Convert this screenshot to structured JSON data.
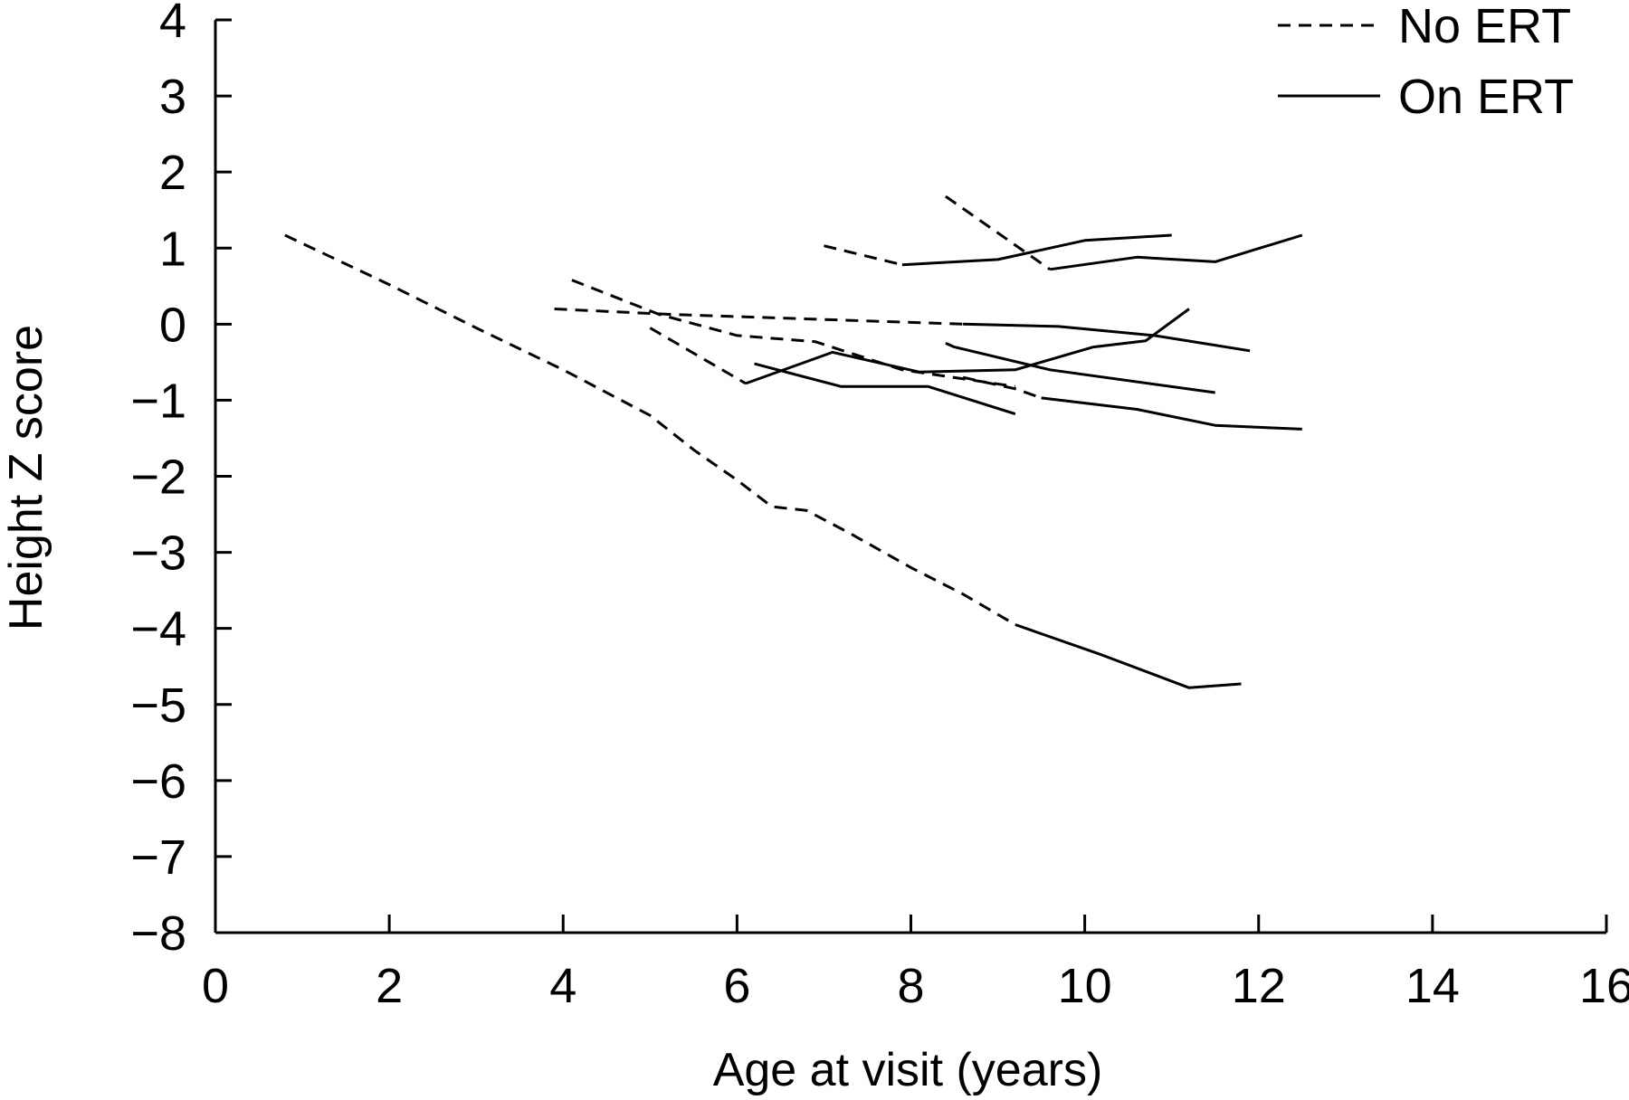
{
  "chart_data": {
    "type": "line",
    "title": "",
    "xlabel": "Age at visit (years)",
    "ylabel": "Height Z score",
    "xlim": [
      0,
      16
    ],
    "ylim": [
      -8,
      4
    ],
    "xticks": [
      0,
      2,
      4,
      6,
      8,
      10,
      12,
      14,
      16
    ],
    "yticks": [
      4,
      3,
      2,
      1,
      0,
      -1,
      -2,
      -3,
      -4,
      -5,
      -6,
      -7,
      -8
    ],
    "ytick_labels": [
      "4",
      "3",
      "2",
      "1",
      "0",
      "−1",
      "−2",
      "−3",
      "−4",
      "−5",
      "−6",
      "−7",
      "−8"
    ],
    "grid": false,
    "legend": {
      "position": "top-right",
      "entries": [
        {
          "label": "No ERT",
          "style": "dashed"
        },
        {
          "label": "On ERT",
          "style": "solid"
        }
      ]
    },
    "colors": {
      "line": "#000000",
      "background": "#ffffff"
    },
    "series": [
      {
        "style": "dashed",
        "points": [
          [
            0.8,
            1.17
          ],
          [
            2.0,
            0.52
          ],
          [
            3.0,
            -0.05
          ],
          [
            4.0,
            -0.6
          ],
          [
            5.0,
            -1.2
          ],
          [
            5.5,
            -1.65
          ],
          [
            6.0,
            -2.05
          ],
          [
            6.4,
            -2.4
          ],
          [
            6.8,
            -2.45
          ],
          [
            7.3,
            -2.75
          ],
          [
            8.0,
            -3.2
          ],
          [
            8.6,
            -3.55
          ],
          [
            9.2,
            -3.95
          ]
        ]
      },
      {
        "style": "solid",
        "points": [
          [
            9.2,
            -3.95
          ],
          [
            10.2,
            -4.35
          ],
          [
            11.2,
            -4.78
          ],
          [
            11.8,
            -4.73
          ]
        ]
      },
      {
        "style": "dashed",
        "points": [
          [
            3.9,
            0.2
          ],
          [
            5.2,
            0.13
          ],
          [
            8.6,
            0.0
          ]
        ]
      },
      {
        "style": "solid",
        "points": [
          [
            8.6,
            0.0
          ],
          [
            9.7,
            -0.03
          ],
          [
            10.8,
            -0.15
          ],
          [
            11.9,
            -0.35
          ]
        ]
      },
      {
        "style": "dashed",
        "points": [
          [
            4.1,
            0.58
          ],
          [
            5.1,
            0.13
          ],
          [
            6.0,
            -0.15
          ],
          [
            6.9,
            -0.23
          ],
          [
            7.9,
            -0.6
          ],
          [
            9.2,
            -0.82
          ]
        ]
      },
      {
        "style": "dashed",
        "points": [
          [
            5.0,
            -0.05
          ],
          [
            6.1,
            -0.78
          ]
        ]
      },
      {
        "style": "solid",
        "points": [
          [
            6.1,
            -0.78
          ],
          [
            7.1,
            -0.37
          ],
          [
            8.1,
            -0.63
          ],
          [
            9.2,
            -0.6
          ],
          [
            10.1,
            -0.3
          ],
          [
            10.7,
            -0.22
          ],
          [
            11.2,
            0.2
          ]
        ]
      },
      {
        "style": "solid",
        "points": [
          [
            6.2,
            -0.52
          ],
          [
            7.2,
            -0.82
          ],
          [
            8.2,
            -0.82
          ],
          [
            9.2,
            -1.18
          ]
        ]
      },
      {
        "style": "dashed",
        "points": [
          [
            8.6,
            -0.7
          ],
          [
            9.2,
            -0.85
          ],
          [
            9.5,
            -0.97
          ]
        ]
      },
      {
        "style": "solid",
        "points": [
          [
            9.5,
            -0.97
          ],
          [
            10.6,
            -1.12
          ],
          [
            11.5,
            -1.33
          ],
          [
            12.5,
            -1.38
          ]
        ]
      },
      {
        "style": "solid",
        "points": [
          [
            8.4,
            -0.25
          ],
          [
            8.5,
            -0.3
          ],
          [
            9.6,
            -0.6
          ],
          [
            11.5,
            -0.9
          ]
        ]
      },
      {
        "style": "dashed",
        "points": [
          [
            7.0,
            1.03
          ],
          [
            7.9,
            0.78
          ]
        ]
      },
      {
        "style": "solid",
        "points": [
          [
            7.9,
            0.78
          ],
          [
            9.0,
            0.85
          ],
          [
            10.0,
            1.1
          ],
          [
            11.0,
            1.17
          ]
        ]
      },
      {
        "style": "dashed",
        "points": [
          [
            8.4,
            1.68
          ],
          [
            9.6,
            0.72
          ]
        ]
      },
      {
        "style": "solid",
        "points": [
          [
            9.6,
            0.72
          ],
          [
            10.6,
            0.88
          ],
          [
            11.5,
            0.82
          ],
          [
            12.5,
            1.17
          ]
        ]
      }
    ]
  }
}
